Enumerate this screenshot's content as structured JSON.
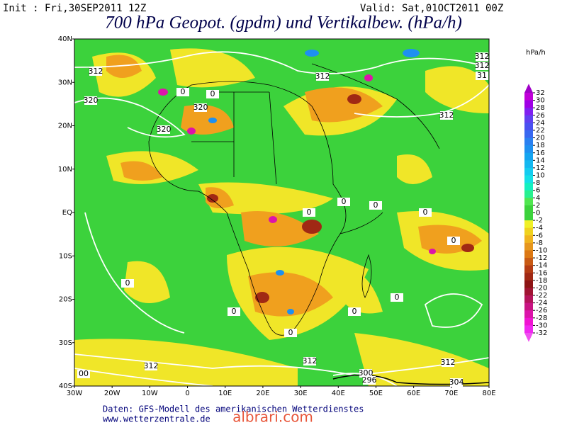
{
  "header": {
    "init": "Init : Fri,30SEP2011 12Z",
    "valid": "Valid: Sat,01OCT2011 00Z",
    "title": "700 hPa Geopot. (gpdm) und Vertikalbew. (hPa/h)"
  },
  "map": {
    "lat_labels": [
      "40N",
      "30N",
      "20N",
      "10N",
      "EQ",
      "10S",
      "20S",
      "30S",
      "40S"
    ],
    "lon_labels": [
      "30W",
      "20W",
      "10W",
      "0",
      "10E",
      "20E",
      "30E",
      "40E",
      "50E",
      "60E",
      "70E",
      "80E"
    ],
    "contour_labels": [
      "312",
      "320",
      "320",
      "320",
      "312",
      "312",
      "312",
      "31",
      "312",
      "312",
      "312",
      "312",
      "300",
      "296",
      "304",
      "00",
      "0",
      "0",
      "0",
      "0",
      "0",
      "0",
      "0",
      "0",
      "0",
      "0",
      "0",
      "0"
    ]
  },
  "colorbar": {
    "unit": "hPa/h",
    "levels": [
      32,
      30,
      28,
      26,
      24,
      22,
      20,
      18,
      16,
      14,
      12,
      10,
      8,
      6,
      4,
      2,
      0,
      -2,
      -4,
      -6,
      -8,
      -10,
      -12,
      -14,
      -16,
      -18,
      -20,
      -22,
      -24,
      -26,
      -28,
      -30,
      -32
    ],
    "colors": [
      "#a000c8",
      "#c000d8",
      "#a000e6",
      "#8020f0",
      "#6040f0",
      "#4a50f0",
      "#3868f0",
      "#2a80f0",
      "#1e90f0",
      "#14a4f0",
      "#14b8f0",
      "#14ccf0",
      "#14e0e6",
      "#14f0c0",
      "#28f090",
      "#50e650",
      "#3cd23c",
      "#3cd23c",
      "#f0f028",
      "#f0d21e",
      "#f0b41e",
      "#e6961e",
      "#dc7814",
      "#c85a14",
      "#b43c14",
      "#a02814",
      "#8c1414",
      "#a01432",
      "#b4145a",
      "#c81482",
      "#dc14aa",
      "#f014d2",
      "#f028f0",
      "#f050f0"
    ]
  },
  "footer": {
    "source": "Daten: GFS-Modell des amerikanischen Wetterdienstes",
    "url": "www.wetterzentrale.de"
  },
  "watermark": "albrari.com"
}
